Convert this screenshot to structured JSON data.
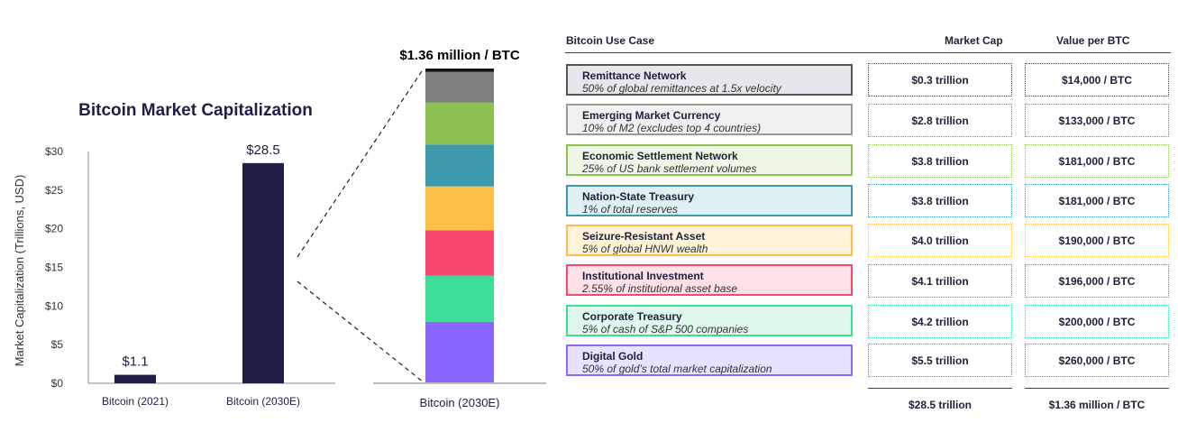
{
  "chart_data": [
    {
      "type": "bar",
      "title": "Bitcoin Market Capitalization",
      "ylabel": "Market Capitalization (Trillions, USD)",
      "categories": [
        "Bitcoin (2021)",
        "Bitcoin (2030E)"
      ],
      "values": [
        1.1,
        28.5
      ],
      "data_labels": [
        "$1.1",
        "$28.5"
      ],
      "ylim": [
        0,
        30
      ],
      "yticks": [
        0,
        5,
        10,
        15,
        20,
        25,
        30
      ],
      "ytick_labels": [
        "$0",
        "$5",
        "$10",
        "$15",
        "$20",
        "$25",
        "$30"
      ],
      "bar_color": "#1f1f45",
      "grid": false
    },
    {
      "type": "bar",
      "stacked": true,
      "title": "$1.36 million / BTC",
      "categories": [
        "Bitcoin (2030E)"
      ],
      "series": [
        {
          "name": "Digital Gold",
          "values": [
            5.5
          ],
          "color": "#8b66ff"
        },
        {
          "name": "Corporate Treasury",
          "values": [
            4.2
          ],
          "color": "#3ddc97"
        },
        {
          "name": "Institutional Investment",
          "values": [
            4.1
          ],
          "color": "#f9486e"
        },
        {
          "name": "Seizure-Resistant Asset",
          "values": [
            4.0
          ],
          "color": "#fdbf45"
        },
        {
          "name": "Nation-State Treasury",
          "values": [
            3.8
          ],
          "color": "#3f99ad"
        },
        {
          "name": "Economic Settlement Network",
          "values": [
            3.8
          ],
          "color": "#8cc152"
        },
        {
          "name": "Emerging Market Currency",
          "values": [
            2.8
          ],
          "color": "#7f7f7f"
        },
        {
          "name": "Remittance Network",
          "values": [
            0.3
          ],
          "color": "#111111"
        }
      ]
    },
    {
      "type": "table",
      "headers": {
        "use_case": "Bitcoin Use Case",
        "market_cap": "Market Cap",
        "value_per_btc": "Value per BTC"
      },
      "rows": [
        {
          "name": "Remittance Network",
          "desc": "50% of global remittances at 1.5x velocity",
          "market_cap": "$0.3 trillion",
          "value": "$14,000 / BTC",
          "border": "#555555",
          "fill": "#e6e6ec",
          "vborder": "#444444"
        },
        {
          "name": "Emerging Market Currency",
          "desc": "10% of M2 (excludes top 4 countries)",
          "market_cap": "$2.8 trillion",
          "value": "$133,000 / BTC",
          "border": "#999999",
          "fill": "#f1f1f1",
          "vborder": "#888888"
        },
        {
          "name": "Economic Settlement Network",
          "desc": "25% of US bank settlement volumes",
          "market_cap": "$3.8 trillion",
          "value": "$181,000 / BTC",
          "border": "#8cc152",
          "fill": "#eef6e4",
          "vborder": "#8cc152"
        },
        {
          "name": "Nation-State Treasury",
          "desc": "1% of total reserves",
          "market_cap": "$3.8 trillion",
          "value": "$181,000 / BTC",
          "border": "#3f99ad",
          "fill": "#dff0f3",
          "vborder": "#3f99ad"
        },
        {
          "name": "Seizure-Resistant Asset",
          "desc": "5% of global HNWI wealth",
          "market_cap": "$4.0 trillion",
          "value": "$190,000 / BTC",
          "border": "#fdbf45",
          "fill": "#fff3da",
          "vborder": "#fdbf45"
        },
        {
          "name": "Institutional Investment",
          "desc": "2.55% of institutional asset base",
          "market_cap": "$4.1 trillion",
          "value": "$196,000 / BTC",
          "border": "#f9486e",
          "fill": "#fde1e7",
          "vborder": "#f9486e"
        },
        {
          "name": "Corporate Treasury",
          "desc": "5% of cash of S&P 500 companies",
          "market_cap": "$4.2 trillion",
          "value": "$200,000 / BTC",
          "border": "#3ddc97",
          "fill": "#dff8ec",
          "vborder": "#3ddc97"
        },
        {
          "name": "Digital Gold",
          "desc": "50% of gold’s total market capitalization",
          "market_cap": "$5.5 trillion",
          "value": "$260,000 / BTC",
          "border": "#8b66ff",
          "fill": "#e8e1ff",
          "vborder": "#8b66ff"
        }
      ],
      "totals": {
        "market_cap": "$28.5 trillion",
        "value": "$1.36 million / BTC"
      }
    }
  ]
}
